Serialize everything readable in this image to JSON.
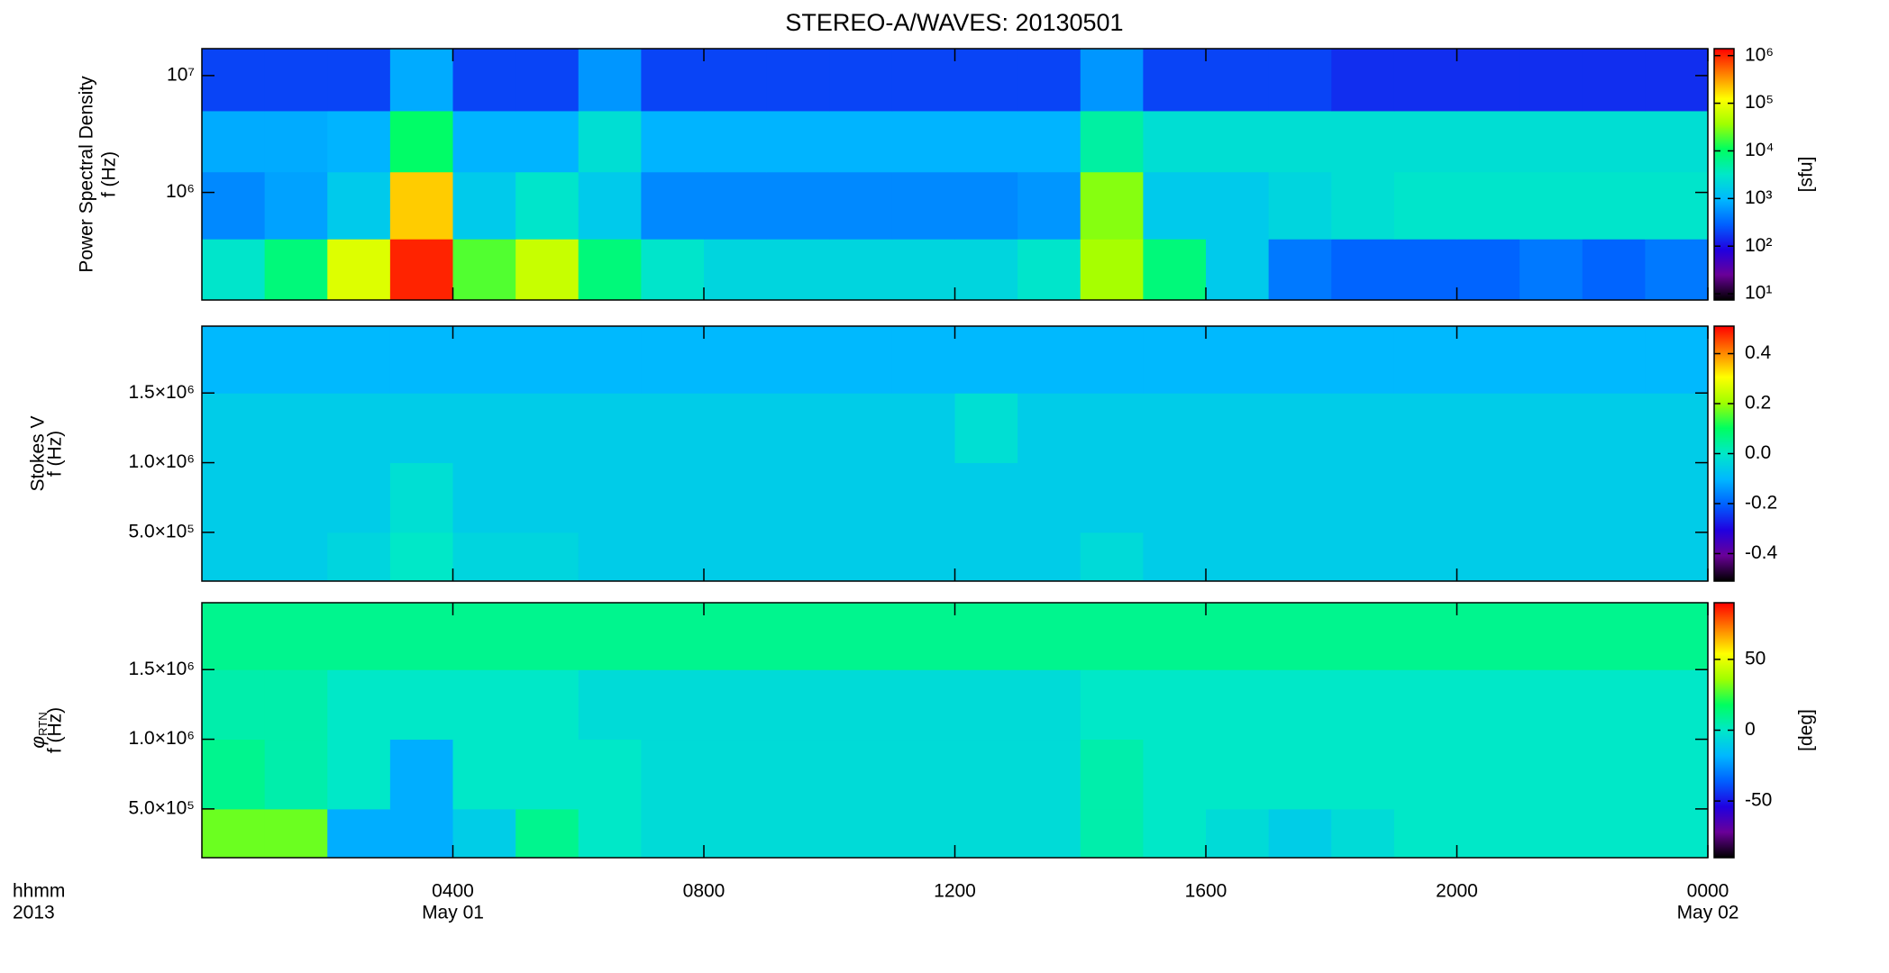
{
  "chart_data": [
    {
      "type": "heatmap",
      "title": "STEREO-A/WAVES: 20130501",
      "ylabel": [
        "Power Spectral Density",
        "f (Hz)"
      ],
      "xlim": [
        0,
        24
      ],
      "ylim": [
        120000,
        17000000
      ],
      "ylog": true,
      "yticks": [
        {
          "value": 1000000,
          "label": "10⁶"
        },
        {
          "value": 10000000,
          "label": "10⁷"
        }
      ],
      "x_edges": [
        0,
        1,
        2,
        3,
        4,
        5,
        6,
        7,
        8,
        9,
        10,
        11,
        12,
        13,
        14,
        15,
        16,
        17,
        18,
        19,
        20,
        21,
        22,
        23,
        24
      ],
      "y_edges": [
        120000,
        400000,
        1500000,
        5000000,
        17000000
      ],
      "z": [
        [
          3000,
          8000,
          80000,
          1000000,
          20000,
          60000,
          8000,
          3000,
          2000,
          2000,
          2000,
          2000,
          2000,
          3000,
          40000,
          8000,
          1500,
          400,
          300,
          300,
          300,
          400,
          300,
          400
        ],
        [
          500,
          700,
          1500,
          200000,
          1500,
          3000,
          1500,
          500,
          500,
          500,
          500,
          500,
          500,
          600,
          30000,
          1500,
          1500,
          2000,
          2500,
          3000,
          3000,
          3000,
          3000,
          3000
        ],
        [
          800,
          800,
          900,
          10000,
          900,
          900,
          2500,
          900,
          900,
          900,
          900,
          900,
          900,
          900,
          5000,
          2500,
          2500,
          2500,
          2500,
          2500,
          2500,
          2500,
          2500,
          2500
        ],
        [
          200,
          200,
          200,
          800,
          200,
          200,
          600,
          200,
          200,
          200,
          200,
          200,
          200,
          200,
          600,
          200,
          200,
          200,
          150,
          150,
          150,
          150,
          150,
          150
        ]
      ],
      "clim": [
        7.4,
        1400000
      ],
      "clog": true,
      "cticks": [
        {
          "value": 10,
          "label": "10¹"
        },
        {
          "value": 100,
          "label": "10²"
        },
        {
          "value": 1000,
          "label": "10³"
        },
        {
          "value": 10000,
          "label": "10⁴"
        },
        {
          "value": 100000,
          "label": "10⁵"
        },
        {
          "value": 1000000,
          "label": "10⁶"
        }
      ],
      "clabel": "[sfu]",
      "colormap": [
        "#000000",
        "#6a0098",
        "#2000e0",
        "#0060ff",
        "#00b8ff",
        "#00e8c8",
        "#00ff60",
        "#a0ff00",
        "#ffff00",
        "#ff8000",
        "#ff0000"
      ]
    },
    {
      "type": "heatmap",
      "ylabel": [
        "Stokes V",
        "f (Hz)"
      ],
      "xlim": [
        0,
        24
      ],
      "ylim": [
        150000,
        1980000
      ],
      "ylog": false,
      "yticks": [
        {
          "value": 500000,
          "label": "5.0×10⁵"
        },
        {
          "value": 1000000,
          "label": "1.0×10⁶"
        },
        {
          "value": 1500000,
          "label": "1.5×10⁶"
        }
      ],
      "x_edges": [
        0,
        1,
        2,
        3,
        4,
        5,
        6,
        7,
        8,
        9,
        10,
        11,
        12,
        13,
        14,
        15,
        16,
        17,
        18,
        19,
        20,
        21,
        22,
        23,
        24
      ],
      "y_edges": [
        150000,
        500000,
        1000000,
        1500000,
        1980000
      ],
      "z": [
        [
          -0.06,
          -0.06,
          -0.04,
          0.0,
          -0.04,
          -0.04,
          -0.06,
          -0.06,
          -0.06,
          -0.06,
          -0.06,
          -0.06,
          -0.06,
          -0.06,
          -0.03,
          -0.06,
          -0.06,
          -0.06,
          -0.06,
          -0.06,
          -0.06,
          -0.06,
          -0.06,
          -0.06
        ],
        [
          -0.06,
          -0.06,
          -0.06,
          -0.02,
          -0.06,
          -0.06,
          -0.06,
          -0.06,
          -0.06,
          -0.06,
          -0.06,
          -0.06,
          -0.06,
          -0.06,
          -0.06,
          -0.06,
          -0.06,
          -0.06,
          -0.06,
          -0.06,
          -0.06,
          -0.06,
          -0.06,
          -0.06
        ],
        [
          -0.06,
          -0.06,
          -0.06,
          -0.06,
          -0.06,
          -0.06,
          -0.06,
          -0.06,
          -0.06,
          -0.06,
          -0.06,
          -0.06,
          -0.02,
          -0.06,
          -0.06,
          -0.06,
          -0.06,
          -0.06,
          -0.06,
          -0.06,
          -0.06,
          -0.06,
          -0.06,
          -0.06
        ],
        [
          -0.1,
          -0.1,
          -0.1,
          -0.1,
          -0.1,
          -0.1,
          -0.1,
          -0.1,
          -0.1,
          -0.1,
          -0.1,
          -0.1,
          -0.1,
          -0.1,
          -0.1,
          -0.1,
          -0.1,
          -0.1,
          -0.1,
          -0.1,
          -0.1,
          -0.1,
          -0.1,
          -0.1
        ]
      ],
      "clim": [
        -0.51,
        0.51
      ],
      "clog": false,
      "cticks": [
        -0.4,
        -0.2,
        {
          "value": 0,
          "label": "0.0"
        },
        0.2,
        0.4
      ],
      "colormap": [
        "#000000",
        "#6a0098",
        "#2000e0",
        "#0060ff",
        "#00b8ff",
        "#00e8c8",
        "#00ff60",
        "#a0ff00",
        "#ffff00",
        "#ff8000",
        "#ff0000"
      ]
    },
    {
      "type": "heatmap",
      "ylabel": [
        "φ",
        "f (Hz)"
      ],
      "ylabel_sub": "RTN",
      "xlim": [
        0,
        24
      ],
      "ylim": [
        150000,
        1980000
      ],
      "ylog": false,
      "yticks": [
        {
          "value": 500000,
          "label": "5.0×10⁵"
        },
        {
          "value": 1000000,
          "label": "1.0×10⁶"
        },
        {
          "value": 1500000,
          "label": "1.5×10⁶"
        }
      ],
      "xticks": [
        {
          "value": 4,
          "label": "0400"
        },
        {
          "value": 8,
          "label": "0800"
        },
        {
          "value": 12,
          "label": "1200"
        },
        {
          "value": 16,
          "label": "1600"
        },
        {
          "value": 20,
          "label": "2000"
        },
        {
          "value": 24,
          "label": "0000"
        }
      ],
      "date_labels": [
        {
          "value": 4,
          "label": "May 01"
        },
        {
          "value": 24,
          "label": "May 02"
        }
      ],
      "xlabel": "hhmm",
      "year": "2013",
      "x_edges": [
        0,
        1,
        2,
        3,
        4,
        5,
        6,
        7,
        8,
        9,
        10,
        11,
        12,
        13,
        14,
        15,
        16,
        17,
        18,
        19,
        20,
        21,
        22,
        23,
        24
      ],
      "y_edges": [
        150000,
        500000,
        1000000,
        1500000,
        1980000
      ],
      "z": [
        [
          30,
          30,
          -20,
          -20,
          -10,
          10,
          0,
          -5,
          -5,
          -5,
          -5,
          -5,
          -5,
          -5,
          5,
          0,
          -5,
          -10,
          -5,
          0,
          0,
          0,
          0,
          0
        ],
        [
          10,
          5,
          0,
          -20,
          0,
          0,
          0,
          -5,
          -5,
          -5,
          -5,
          -5,
          -5,
          -5,
          5,
          0,
          0,
          0,
          0,
          0,
          0,
          0,
          0,
          0
        ],
        [
          5,
          5,
          0,
          0,
          0,
          0,
          -5,
          -5,
          -5,
          -5,
          -5,
          -5,
          -5,
          -5,
          0,
          0,
          0,
          0,
          0,
          0,
          0,
          0,
          0,
          0
        ],
        [
          10,
          10,
          10,
          10,
          10,
          10,
          10,
          10,
          10,
          10,
          10,
          10,
          10,
          10,
          10,
          10,
          10,
          10,
          10,
          10,
          10,
          10,
          10,
          10
        ]
      ],
      "clim": [
        -90,
        90
      ],
      "clog": false,
      "cticks": [
        -50,
        0,
        50
      ],
      "clabel": "[deg]",
      "colormap": [
        "#000000",
        "#6a0098",
        "#2000e0",
        "#0060ff",
        "#00b8ff",
        "#00e8c8",
        "#00ff60",
        "#a0ff00",
        "#ffff00",
        "#ff8000",
        "#ff0000"
      ]
    }
  ]
}
